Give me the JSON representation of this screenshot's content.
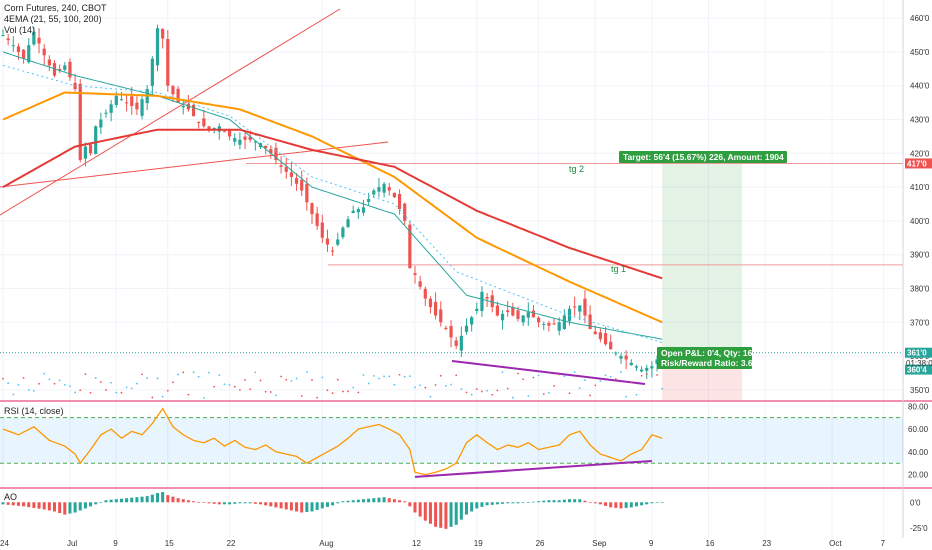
{
  "legend": {
    "main": "Corn Futures, 240, CBOT",
    "ema": "4EMA (21, 55, 100, 200)",
    "vol": "Vol (14)",
    "rsi": "RSI (14, close)",
    "ao": "AO"
  },
  "annotations": {
    "target": "Target: 56'4 (15.67%) 226, Amount: 1904",
    "open_pnl": "Open P&L: 0'4, Qty: 16",
    "risk_reward": "Risk/Reward Ratio: 3.65",
    "tg1": "tg 1",
    "tg2": "tg 2",
    "countdown": "01:38:0"
  },
  "colors": {
    "bull": "#26a69a",
    "bear": "#ef5350",
    "ema21": "#26a69a",
    "ema55": "#4fc3f7",
    "ema100": "#ff9800",
    "ema200": "#e53935",
    "rsi": "#ff9800",
    "profit": "#2e9e3e",
    "divergence": "#9c27b0"
  },
  "chart_data": [
    {
      "type": "candlestick",
      "title": "Corn Futures, 240, CBOT",
      "x_ticks": [
        "24",
        "Jul",
        "9",
        "15",
        "22",
        "Aug",
        "12",
        "19",
        "26",
        "Sep",
        "9",
        "16",
        "23",
        "Oct",
        "7"
      ],
      "y_ticks": [
        "460'0",
        "450'0",
        "440'0",
        "430'0",
        "420'0",
        "410'0",
        "400'0",
        "390'0",
        "380'0",
        "370'0",
        "360'0",
        "350'0"
      ],
      "ylim": [
        347,
        463
      ],
      "price_tags": [
        "417'0",
        "361'0",
        "360'4"
      ],
      "close_path": [
        [
          0,
          455
        ],
        [
          2,
          452
        ],
        [
          4,
          448
        ],
        [
          6,
          456
        ],
        [
          8,
          449
        ],
        [
          10,
          443
        ],
        [
          12,
          446
        ],
        [
          14,
          439
        ],
        [
          15,
          418
        ],
        [
          16,
          422
        ],
        [
          17,
          420
        ],
        [
          18,
          428
        ],
        [
          20,
          432
        ],
        [
          22,
          437
        ],
        [
          24,
          435
        ],
        [
          26,
          433
        ],
        [
          28,
          439
        ],
        [
          30,
          457
        ],
        [
          31,
          454
        ],
        [
          32,
          440
        ],
        [
          34,
          435
        ],
        [
          36,
          433
        ],
        [
          38,
          429
        ],
        [
          40,
          427
        ],
        [
          42,
          428
        ],
        [
          44,
          425
        ],
        [
          46,
          424
        ],
        [
          48,
          424
        ],
        [
          50,
          423
        ],
        [
          52,
          420
        ],
        [
          54,
          416
        ],
        [
          56,
          413
        ],
        [
          58,
          409
        ],
        [
          60,
          402
        ],
        [
          62,
          395
        ],
        [
          64,
          391
        ],
        [
          66,
          398
        ],
        [
          68,
          403
        ],
        [
          70,
          404
        ],
        [
          72,
          409
        ],
        [
          74,
          411
        ],
        [
          76,
          407
        ],
        [
          78,
          400
        ],
        [
          79,
          386
        ],
        [
          80,
          384
        ],
        [
          82,
          377
        ],
        [
          84,
          372
        ],
        [
          86,
          368
        ],
        [
          88,
          363
        ],
        [
          90,
          369
        ],
        [
          92,
          374
        ],
        [
          93,
          379
        ],
        [
          94,
          377
        ],
        [
          96,
          372
        ],
        [
          98,
          373
        ],
        [
          100,
          371
        ],
        [
          102,
          373
        ],
        [
          104,
          370
        ],
        [
          106,
          369
        ],
        [
          108,
          370
        ],
        [
          110,
          374
        ],
        [
          112,
          375
        ],
        [
          113,
          372
        ],
        [
          114,
          368
        ],
        [
          116,
          365
        ],
        [
          118,
          362
        ],
        [
          120,
          360
        ],
        [
          122,
          358
        ],
        [
          124,
          356
        ],
        [
          126,
          357
        ],
        [
          128,
          361
        ]
      ],
      "ema_levels": [
        {
          "name": "EMA 21",
          "points": [
            [
              0,
              450
            ],
            [
              14,
              443
            ],
            [
              30,
              437
            ],
            [
              44,
              430
            ],
            [
              60,
              410
            ],
            [
              76,
              402
            ],
            [
              90,
              378
            ],
            [
              110,
              370
            ],
            [
              128,
              365
            ]
          ]
        },
        {
          "name": "EMA 55",
          "points": [
            [
              0,
              446
            ],
            [
              14,
              440
            ],
            [
              30,
              438
            ],
            [
              44,
              431
            ],
            [
              60,
              413
            ],
            [
              76,
              405
            ],
            [
              88,
              385
            ],
            [
              110,
              372
            ],
            [
              128,
              364
            ]
          ]
        },
        {
          "name": "EMA 100",
          "points": [
            [
              0,
              430
            ],
            [
              12,
              438
            ],
            [
              30,
              437
            ],
            [
              46,
              433
            ],
            [
              60,
              425
            ],
            [
              76,
              413
            ],
            [
              92,
              395
            ],
            [
              110,
              382
            ],
            [
              128,
              370
            ]
          ]
        },
        {
          "name": "EMA 200",
          "points": [
            [
              0,
              410
            ],
            [
              14,
              422
            ],
            [
              30,
              427
            ],
            [
              46,
              427
            ],
            [
              60,
              421
            ],
            [
              76,
              416
            ],
            [
              92,
              403
            ],
            [
              110,
              392
            ],
            [
              128,
              383
            ]
          ]
        }
      ],
      "trade": {
        "entry": 361,
        "target": 417,
        "stop": 346,
        "tg1_level": 387,
        "tg2_level": 417
      }
    },
    {
      "type": "line",
      "title": "RSI (14, close)",
      "y_ticks": [
        "80.00",
        "60.00",
        "40.00",
        "20.00"
      ],
      "ylim": [
        10,
        82
      ],
      "bands": [
        30,
        70
      ],
      "values": [
        [
          0,
          60
        ],
        [
          3,
          55
        ],
        [
          6,
          62
        ],
        [
          9,
          50
        ],
        [
          12,
          45
        ],
        [
          14,
          38
        ],
        [
          15,
          30
        ],
        [
          17,
          42
        ],
        [
          19,
          55
        ],
        [
          21,
          60
        ],
        [
          23,
          52
        ],
        [
          25,
          58
        ],
        [
          27,
          55
        ],
        [
          29,
          65
        ],
        [
          31,
          78
        ],
        [
          33,
          62
        ],
        [
          35,
          55
        ],
        [
          37,
          50
        ],
        [
          39,
          48
        ],
        [
          41,
          52
        ],
        [
          43,
          45
        ],
        [
          45,
          50
        ],
        [
          47,
          44
        ],
        [
          49,
          42
        ],
        [
          51,
          46
        ],
        [
          53,
          40
        ],
        [
          55,
          38
        ],
        [
          57,
          36
        ],
        [
          59,
          30
        ],
        [
          61,
          35
        ],
        [
          63,
          40
        ],
        [
          65,
          45
        ],
        [
          67,
          52
        ],
        [
          69,
          60
        ],
        [
          71,
          62
        ],
        [
          73,
          64
        ],
        [
          75,
          60
        ],
        [
          77,
          55
        ],
        [
          79,
          42
        ],
        [
          80,
          22
        ],
        [
          82,
          20
        ],
        [
          84,
          22
        ],
        [
          86,
          25
        ],
        [
          88,
          30
        ],
        [
          90,
          48
        ],
        [
          92,
          55
        ],
        [
          94,
          48
        ],
        [
          96,
          42
        ],
        [
          98,
          46
        ],
        [
          100,
          44
        ],
        [
          102,
          48
        ],
        [
          104,
          42
        ],
        [
          106,
          44
        ],
        [
          108,
          46
        ],
        [
          110,
          55
        ],
        [
          112,
          58
        ],
        [
          114,
          46
        ],
        [
          116,
          38
        ],
        [
          118,
          35
        ],
        [
          120,
          32
        ],
        [
          122,
          38
        ],
        [
          124,
          42
        ],
        [
          126,
          55
        ],
        [
          128,
          52
        ]
      ],
      "divergence": [
        [
          80,
          18
        ],
        [
          126,
          32
        ]
      ]
    },
    {
      "type": "bar",
      "title": "AO",
      "y_ticks": [
        "0'0",
        "-25'0"
      ],
      "ylim": [
        -32,
        12
      ],
      "values": [
        [
          0,
          -2
        ],
        [
          4,
          -4
        ],
        [
          8,
          -7
        ],
        [
          10,
          -9
        ],
        [
          12,
          -12
        ],
        [
          14,
          -10
        ],
        [
          16,
          -6
        ],
        [
          18,
          -2
        ],
        [
          20,
          2
        ],
        [
          22,
          3
        ],
        [
          24,
          4
        ],
        [
          26,
          5
        ],
        [
          28,
          6
        ],
        [
          30,
          9
        ],
        [
          31,
          10
        ],
        [
          32,
          7
        ],
        [
          34,
          4
        ],
        [
          36,
          2
        ],
        [
          38,
          0
        ],
        [
          40,
          -1
        ],
        [
          42,
          -2
        ],
        [
          44,
          -2
        ],
        [
          46,
          -1
        ],
        [
          48,
          -1
        ],
        [
          50,
          -2
        ],
        [
          52,
          -4
        ],
        [
          54,
          -6
        ],
        [
          56,
          -8
        ],
        [
          58,
          -10
        ],
        [
          60,
          -9
        ],
        [
          62,
          -6
        ],
        [
          64,
          -3
        ],
        [
          66,
          1
        ],
        [
          68,
          2
        ],
        [
          70,
          3
        ],
        [
          72,
          4
        ],
        [
          74,
          5
        ],
        [
          76,
          3
        ],
        [
          78,
          1
        ],
        [
          79,
          -4
        ],
        [
          80,
          -10
        ],
        [
          82,
          -18
        ],
        [
          84,
          -24
        ],
        [
          86,
          -26
        ],
        [
          88,
          -22
        ],
        [
          90,
          -12
        ],
        [
          92,
          -6
        ],
        [
          94,
          -3
        ],
        [
          96,
          -2
        ],
        [
          98,
          -1
        ],
        [
          100,
          -1
        ],
        [
          102,
          0
        ],
        [
          104,
          1
        ],
        [
          106,
          2
        ],
        [
          108,
          2
        ],
        [
          110,
          3
        ],
        [
          112,
          3
        ],
        [
          114,
          0
        ],
        [
          116,
          -2
        ],
        [
          118,
          -5
        ],
        [
          120,
          -6
        ],
        [
          122,
          -5
        ],
        [
          124,
          -3
        ],
        [
          126,
          -1
        ],
        [
          128,
          0
        ]
      ]
    }
  ]
}
